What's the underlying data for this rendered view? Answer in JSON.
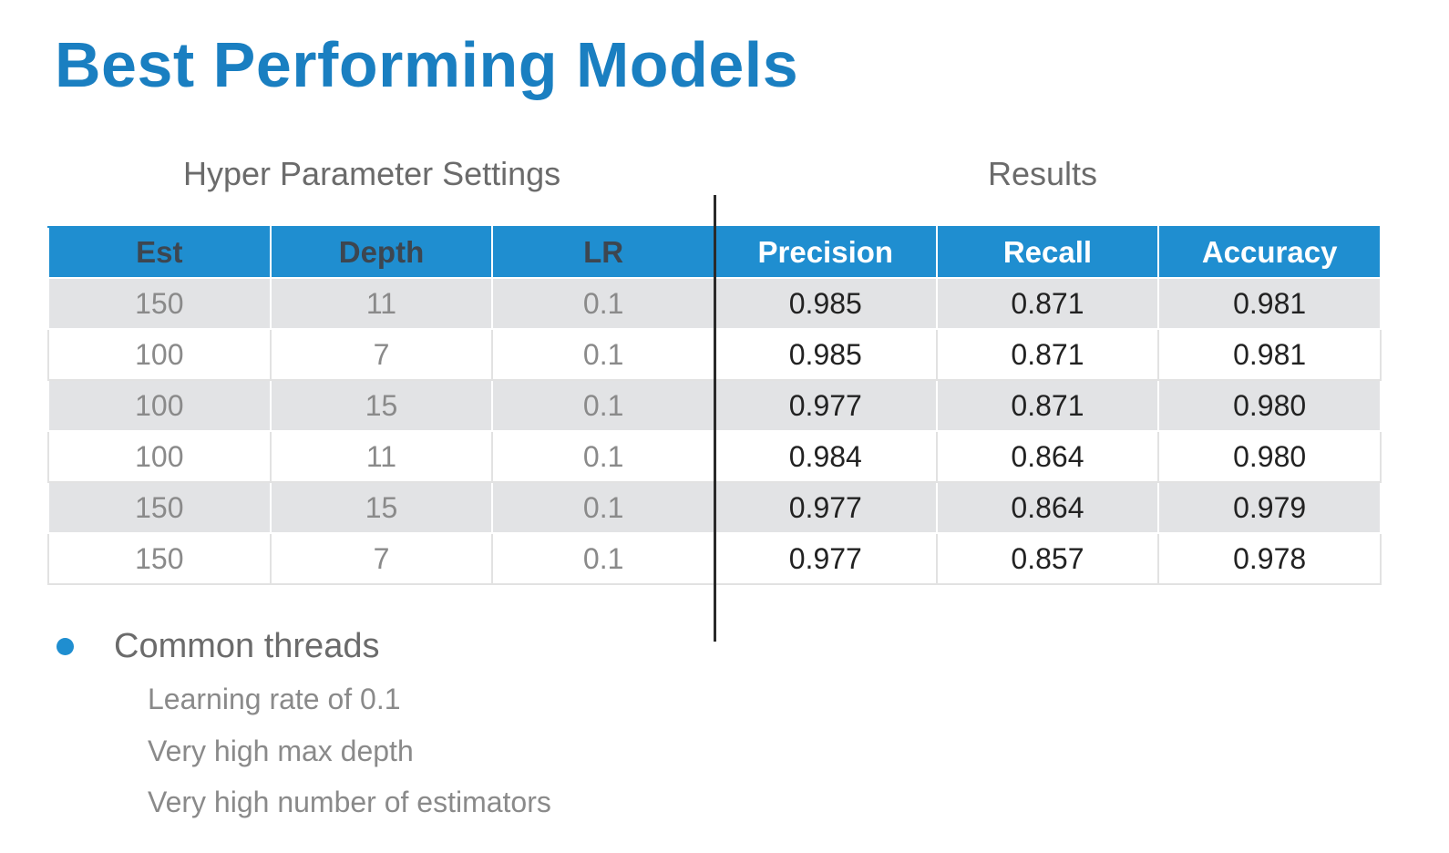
{
  "title": "Best Performing Models",
  "groups": {
    "hyper": "Hyper Parameter Settings",
    "results": "Results"
  },
  "table": {
    "headers": [
      "Est",
      "Depth",
      "LR",
      "Precision",
      "Recall",
      "Accuracy"
    ],
    "rows": [
      [
        "150",
        "11",
        "0.1",
        "0.985",
        "0.871",
        "0.981"
      ],
      [
        "100",
        "7",
        "0.1",
        "0.985",
        "0.871",
        "0.981"
      ],
      [
        "100",
        "15",
        "0.1",
        "0.977",
        "0.871",
        "0.980"
      ],
      [
        "100",
        "11",
        "0.1",
        "0.984",
        "0.864",
        "0.980"
      ],
      [
        "150",
        "15",
        "0.1",
        "0.977",
        "0.864",
        "0.979"
      ],
      [
        "150",
        "7",
        "0.1",
        "0.977",
        "0.857",
        "0.978"
      ]
    ]
  },
  "bullet": {
    "label": "Common threads",
    "items": [
      "Learning rate of 0.1",
      "Very high max depth",
      "Very high number of estimators"
    ]
  },
  "colors": {
    "title": "#1a7fc1",
    "header_bg": "#1f8ed0",
    "row_alt": "#e2e3e5"
  }
}
